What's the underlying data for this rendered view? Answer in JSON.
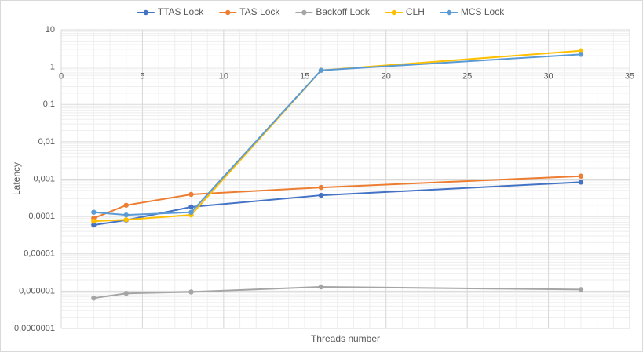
{
  "chart_data": {
    "type": "line",
    "x_label": "Threads number",
    "y_label": "Latency",
    "x": [
      2,
      4,
      8,
      16,
      32
    ],
    "series": [
      {
        "name": "TTAS Lock",
        "color": "#4472c4",
        "values": [
          5.9e-05,
          8e-05,
          0.00018,
          0.00037,
          0.00083
        ]
      },
      {
        "name": "TAS Lock",
        "color": "#ed7d31",
        "values": [
          9e-05,
          0.0002,
          0.00039,
          0.0006,
          0.0012
        ]
      },
      {
        "name": "Backoff Lock",
        "color": "#a5a5a5",
        "values": [
          6.5e-07,
          8.7e-07,
          9.5e-07,
          1.3e-06,
          1.1e-06
        ]
      },
      {
        "name": "CLH",
        "color": "#ffc000",
        "values": [
          7.5e-05,
          8.2e-05,
          0.00011,
          0.82,
          2.75
        ]
      },
      {
        "name": "MCS Lock",
        "color": "#5b9bd5",
        "values": [
          0.00013,
          0.00011,
          0.00013,
          0.82,
          2.2
        ]
      }
    ],
    "xlim": [
      0,
      35
    ],
    "xticks": [
      0,
      5,
      10,
      15,
      20,
      25,
      30,
      35
    ],
    "ylim": [
      1e-07,
      10
    ],
    "yscale": "log",
    "yticks": [
      {
        "value": 1e-07,
        "label": "0,0000001"
      },
      {
        "value": 1e-06,
        "label": "0,000001"
      },
      {
        "value": 1e-05,
        "label": "0,00001"
      },
      {
        "value": 0.0001,
        "label": "0,0001"
      },
      {
        "value": 0.001,
        "label": "0,001"
      },
      {
        "value": 0.01,
        "label": "0,01"
      },
      {
        "value": 0.1,
        "label": "0,1"
      },
      1,
      10
    ],
    "x_axis_at": 1,
    "grid": true,
    "minor_grid": true,
    "legend": "top"
  }
}
